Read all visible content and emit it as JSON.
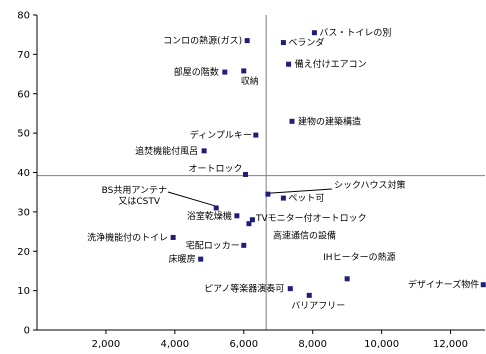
{
  "chart_data": {
    "type": "scatter",
    "title": "",
    "xlabel": "",
    "ylabel": "",
    "xlim": [
      0,
      13000
    ],
    "ylim": [
      0,
      80
    ],
    "x_ticks": [
      2000,
      4000,
      6000,
      8000,
      10000,
      12000
    ],
    "x_tick_labels": [
      "2,000",
      "4,000",
      "6,000",
      "8,000",
      "10,000",
      "12,000"
    ],
    "y_ticks": [
      0,
      10,
      20,
      30,
      40,
      50,
      60,
      70,
      80
    ],
    "y_tick_labels": [
      "0",
      "10",
      "20",
      "30",
      "40",
      "50",
      "60",
      "70",
      "80"
    ],
    "reference_lines": {
      "x": 6650,
      "y": 39.2
    },
    "marker_color": "#1f1f7a",
    "points": [
      {
        "label": "バス・トイレの別",
        "x": 8050,
        "y": 75.5
      },
      {
        "label": "コンロの熱源(ガス)",
        "x": 6100,
        "y": 73.5
      },
      {
        "label": "ベランダ",
        "x": 7150,
        "y": 73.0
      },
      {
        "label": "備え付けエアコン",
        "x": 7300,
        "y": 67.5
      },
      {
        "label": "部屋の階数",
        "x": 5450,
        "y": 65.5
      },
      {
        "label": "収納",
        "x": 6000,
        "y": 65.8
      },
      {
        "label": "建物の建築構造",
        "x": 7400,
        "y": 53.0
      },
      {
        "label": "ディンプルキー",
        "x": 6350,
        "y": 49.5
      },
      {
        "label": "追焚機能付風呂",
        "x": 4850,
        "y": 45.5
      },
      {
        "label": "オートロック",
        "x": 6050,
        "y": 39.5
      },
      {
        "label": "シックハウス対策",
        "x": 6700,
        "y": 34.5
      },
      {
        "label": "ペット可",
        "x": 7150,
        "y": 33.5
      },
      {
        "label": "BS共用アンテナ又はCSTV",
        "x": 5200,
        "y": 31.0
      },
      {
        "label": "浴室乾燥機",
        "x": 5800,
        "y": 29.0
      },
      {
        "label": "TVモニター付オートロック",
        "x": 6250,
        "y": 28.0
      },
      {
        "label": "高速通信の設備",
        "x": 6150,
        "y": 27.0
      },
      {
        "label": "洗浄機能付のトイレ",
        "x": 3950,
        "y": 23.5
      },
      {
        "label": "宅配ロッカー",
        "x": 6000,
        "y": 21.5
      },
      {
        "label": "床暖房",
        "x": 4750,
        "y": 18.0
      },
      {
        "label": "IHヒーターの熱源",
        "x": 9000,
        "y": 13.0
      },
      {
        "label": "デザイナーズ物件",
        "x": 12950,
        "y": 11.5
      },
      {
        "label": "ピアノ等楽器演奏可",
        "x": 7350,
        "y": 10.5
      },
      {
        "label": "バリアフリー",
        "x": 7900,
        "y": 8.8
      }
    ]
  }
}
